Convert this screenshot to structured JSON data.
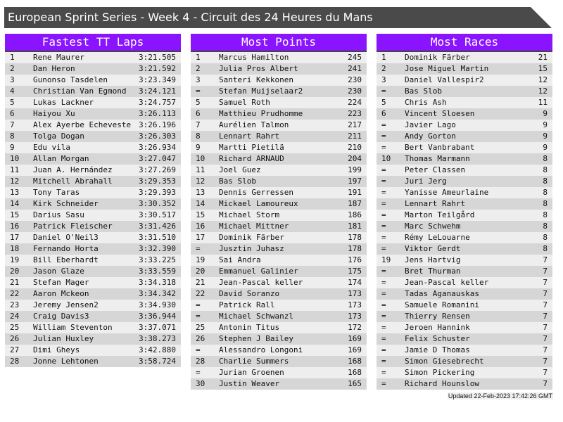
{
  "title": "European Sprint Series - Week 4 - Circuit des 24 Heures du Mans",
  "tables": [
    {
      "heading": "Fastest TT Laps",
      "rows": [
        [
          "1",
          "Rene Maurer",
          "3:21.505"
        ],
        [
          "2",
          "Dan Heron",
          "3:21.592"
        ],
        [
          "3",
          "Gunonso Tasdelen",
          "3:23.349"
        ],
        [
          "4",
          "Christian Van Egmond",
          "3:24.121"
        ],
        [
          "5",
          "Lukas Lackner",
          "3:24.757"
        ],
        [
          "6",
          "Haiyou Xu",
          "3:26.113"
        ],
        [
          "7",
          "Alex Ayerbe Echeveste",
          "3:26.196"
        ],
        [
          "8",
          "Tolga Dogan",
          "3:26.303"
        ],
        [
          "9",
          "Edu vila",
          "3:26.934"
        ],
        [
          "10",
          "Allan Morgan",
          "3:27.047"
        ],
        [
          "11",
          "Juan A. Hernández",
          "3:27.269"
        ],
        [
          "12",
          "Mitchell Abrahall",
          "3:29.353"
        ],
        [
          "13",
          "Tony Taras",
          "3:29.393"
        ],
        [
          "14",
          "Kirk Schneider",
          "3:30.352"
        ],
        [
          "15",
          "Darius Sasu",
          "3:30.517"
        ],
        [
          "16",
          "Patrick Fleischer",
          "3:31.426"
        ],
        [
          "17",
          "Daniel O'Neil3",
          "3:31.510"
        ],
        [
          "18",
          "Fernando Horta",
          "3:32.390"
        ],
        [
          "19",
          "Bill Eberhardt",
          "3:33.225"
        ],
        [
          "20",
          "Jason Glaze",
          "3:33.559"
        ],
        [
          "21",
          "Stefan Mager",
          "3:34.318"
        ],
        [
          "22",
          "Aaron Mckeon",
          "3:34.342"
        ],
        [
          "23",
          "Jeremy Jensen2",
          "3:34.930"
        ],
        [
          "24",
          "Craig Davis3",
          "3:36.944"
        ],
        [
          "25",
          "William Steventon",
          "3:37.071"
        ],
        [
          "26",
          "Julian Huxley",
          "3:38.273"
        ],
        [
          "27",
          "Dimi Gheys",
          "3:42.880"
        ],
        [
          "28",
          "Jonne Lehtonen",
          "3:58.724"
        ]
      ]
    },
    {
      "heading": "Most Points",
      "rows": [
        [
          "1",
          "Marcus Hamilton",
          "245"
        ],
        [
          "2",
          "Julia Pros Albert",
          "241"
        ],
        [
          "3",
          "Santeri Kekkonen",
          "230"
        ],
        [
          "=",
          "Stefan Muijselaar2",
          "230"
        ],
        [
          "5",
          "Samuel Roth",
          "224"
        ],
        [
          "6",
          "Matthieu Prudhomme",
          "223"
        ],
        [
          "7",
          "Aurélien Talmon",
          "217"
        ],
        [
          "8",
          "Lennart Rahrt",
          "211"
        ],
        [
          "9",
          "Martti Pietilä",
          "210"
        ],
        [
          "10",
          "Richard ARNAUD",
          "204"
        ],
        [
          "11",
          "Joel Guez",
          "199"
        ],
        [
          "12",
          "Bas Slob",
          "197"
        ],
        [
          "13",
          "Dennis Gerressen",
          "191"
        ],
        [
          "14",
          "Mickael Lamoureux",
          "187"
        ],
        [
          "15",
          "Michael Storm",
          "186"
        ],
        [
          "16",
          "Michael Mittner",
          "181"
        ],
        [
          "17",
          "Dominik Färber",
          "178"
        ],
        [
          "=",
          "Jusztin Juhasz",
          "178"
        ],
        [
          "19",
          "Sai Andra",
          "176"
        ],
        [
          "20",
          "Emmanuel Galinier",
          "175"
        ],
        [
          "21",
          "Jean-Pascal keller",
          "174"
        ],
        [
          "22",
          "David Soranzo",
          "173"
        ],
        [
          "=",
          "Patrick Rall",
          "173"
        ],
        [
          "=",
          "Michael Schwanzl",
          "173"
        ],
        [
          "25",
          "Antonin Titus",
          "172"
        ],
        [
          "26",
          "Stephen J Bailey",
          "169"
        ],
        [
          "=",
          "Alessandro Longoni",
          "169"
        ],
        [
          "28",
          "Charlie Summers",
          "168"
        ],
        [
          "=",
          "Jurian Groenen",
          "168"
        ],
        [
          "30",
          "Justin Weaver",
          "165"
        ]
      ]
    },
    {
      "heading": "Most Races",
      "rows": [
        [
          "1",
          "Dominik Färber",
          "21"
        ],
        [
          "2",
          "Jose Miguel Martin",
          "15"
        ],
        [
          "3",
          "Daniel Vallespir2",
          "12"
        ],
        [
          "=",
          "Bas Slob",
          "12"
        ],
        [
          "5",
          "Chris Ash",
          "11"
        ],
        [
          "6",
          "Vincent Sloesen",
          "9"
        ],
        [
          "=",
          "Javier Lago",
          "9"
        ],
        [
          "=",
          "Andy Gorton",
          "9"
        ],
        [
          "=",
          "Bert Vanbrabant",
          "9"
        ],
        [
          "10",
          "Thomas Marmann",
          "8"
        ],
        [
          "=",
          "Peter Classen",
          "8"
        ],
        [
          "=",
          "Juri Jerg",
          "8"
        ],
        [
          "=",
          "Yanisse Ameurlaine",
          "8"
        ],
        [
          "=",
          "Lennart Rahrt",
          "8"
        ],
        [
          "=",
          "Marton Teilgård",
          "8"
        ],
        [
          "=",
          "Marc Schwehm",
          "8"
        ],
        [
          "=",
          "Rémy LeLouarne",
          "8"
        ],
        [
          "=",
          "Viktor Gerdt",
          "8"
        ],
        [
          "19",
          "Jens Hartvig",
          "7"
        ],
        [
          "=",
          "Bret Thurman",
          "7"
        ],
        [
          "=",
          "Jean-Pascal keller",
          "7"
        ],
        [
          "=",
          "Tadas Aganauskas",
          "7"
        ],
        [
          "=",
          "Samuele Romanini",
          "7"
        ],
        [
          "=",
          "Thierry Rensen",
          "7"
        ],
        [
          "=",
          "Jeroen Hannink",
          "7"
        ],
        [
          "=",
          "Felix Schuster",
          "7"
        ],
        [
          "=",
          "Jamie D Thomas",
          "7"
        ],
        [
          "=",
          "Simon Giesebrecht",
          "7"
        ],
        [
          "=",
          "Simon Pickering",
          "7"
        ],
        [
          "=",
          "Richard Hounslow",
          "7"
        ]
      ]
    }
  ],
  "footer": "Updated 22-Feb-2023 17:42:26 GMT",
  "colors": {
    "header": "#8a14ff",
    "titlebar": "#4a4a4a"
  }
}
